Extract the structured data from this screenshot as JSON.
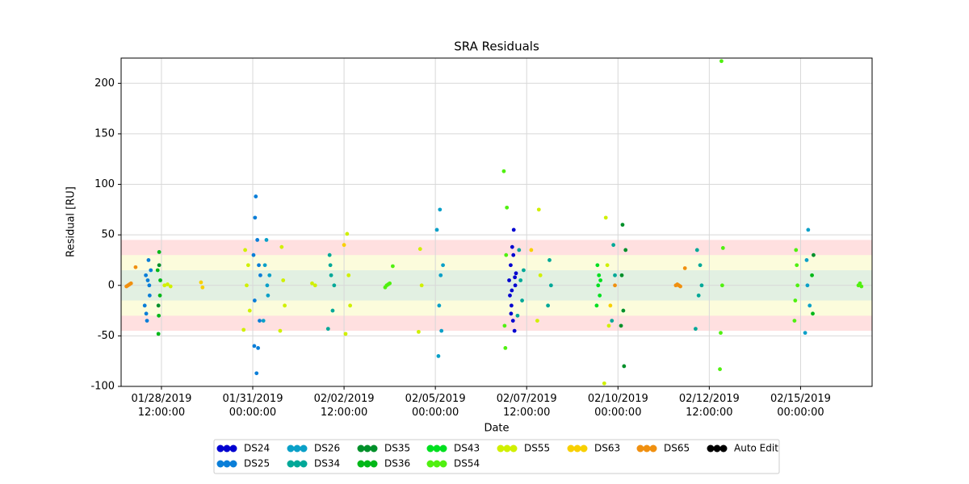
{
  "chart_data": {
    "type": "scatter",
    "title": "SRA Residuals",
    "x_label": "Date",
    "y_label": "Residual [RU]",
    "xlim": [
      "2019-01-27T09:30",
      "2019-02-16T23:00"
    ],
    "ylim": [
      -100,
      225
    ],
    "xticks": [
      {
        "value": "2019-01-28T12:00",
        "label": "01/28/2019\n12:00:00"
      },
      {
        "value": "2019-01-31T00:00",
        "label": "01/31/2019\n00:00:00"
      },
      {
        "value": "2019-02-02T12:00",
        "label": "02/02/2019\n12:00:00"
      },
      {
        "value": "2019-02-05T00:00",
        "label": "02/05/2019\n00:00:00"
      },
      {
        "value": "2019-02-07T12:00",
        "label": "02/07/2019\n12:00:00"
      },
      {
        "value": "2019-02-10T00:00",
        "label": "02/10/2019\n00:00:00"
      },
      {
        "value": "2019-02-12T12:00",
        "label": "02/12/2019\n12:00:00"
      },
      {
        "value": "2019-02-15T00:00",
        "label": "02/15/2019\n00:00:00"
      }
    ],
    "yticks": [
      -100,
      -50,
      0,
      50,
      100,
      150,
      200
    ],
    "grid": true,
    "bands": [
      {
        "min": -45,
        "max": 45,
        "color": "#ffe0e0"
      },
      {
        "min": -30,
        "max": 30,
        "color": "#fcfcdc"
      },
      {
        "min": -15,
        "max": 15,
        "color": "#e2f0e2"
      }
    ],
    "legend_position": "bottom",
    "series": [
      {
        "name": "DS24",
        "color": "#0000d0",
        "x": [
          "2019-02-07T00:30",
          "2019-02-07T01:00",
          "2019-02-07T01:30",
          "2019-02-07T02:00",
          "2019-02-07T02:30",
          "2019-02-07T03:00",
          "2019-02-07T03:30",
          "2019-02-07T04:00",
          "2019-02-07T04:30",
          "2019-02-07T05:00",
          "2019-02-07T02:15",
          "2019-02-07T03:15",
          "2019-02-07T01:45",
          "2019-02-07T04:15"
        ],
        "values": [
          5,
          -10,
          20,
          -20,
          38,
          -35,
          55,
          -45,
          0,
          12,
          -5,
          30,
          -28,
          8
        ]
      },
      {
        "name": "DS25",
        "color": "#0a7ed8",
        "x": [
          "2019-01-28T01:00",
          "2019-01-28T01:45",
          "2019-01-28T02:30",
          "2019-01-28T03:00",
          "2019-01-28T03:30",
          "2019-01-28T04:15",
          "2019-01-28T05:00",
          "2019-01-28T02:00",
          "2019-01-28T04:00",
          "2019-01-31T00:30",
          "2019-01-31T01:00",
          "2019-01-31T01:30",
          "2019-01-31T02:00",
          "2019-01-31T02:30",
          "2019-01-31T03:00",
          "2019-01-31T03:30",
          "2019-01-31T04:00",
          "2019-01-31T04:30",
          "2019-01-31T05:00",
          "2019-01-31T01:15"
        ],
        "values": [
          -20,
          10,
          -35,
          5,
          25,
          -10,
          15,
          -28,
          0,
          30,
          -60,
          67,
          88,
          -87,
          45,
          -62,
          20,
          -35,
          10,
          -15
        ]
      },
      {
        "name": "DS26",
        "color": "#0aa0c8",
        "x": [
          "2019-01-31T07:00",
          "2019-01-31T08:00",
          "2019-01-31T09:00",
          "2019-01-31T10:00",
          "2019-01-31T11:00",
          "2019-01-31T09:30",
          "2019-02-05T01:00",
          "2019-02-05T02:00",
          "2019-02-05T03:00",
          "2019-02-05T04:00",
          "2019-02-05T05:00",
          "2019-02-05T02:30",
          "2019-02-05T03:30",
          "2019-02-15T03:00",
          "2019-02-15T04:00",
          "2019-02-15T05:00",
          "2019-02-15T06:00",
          "2019-02-15T04:30"
        ],
        "values": [
          -35,
          20,
          45,
          -10,
          10,
          0,
          55,
          -70,
          75,
          -45,
          20,
          -20,
          10,
          -47,
          25,
          55,
          -20,
          0
        ]
      },
      {
        "name": "DS34",
        "color": "#00a898",
        "x": [
          "2019-02-02T01:30",
          "2019-02-02T02:30",
          "2019-02-02T03:30",
          "2019-02-02T04:30",
          "2019-02-02T05:30",
          "2019-02-02T03:00",
          "2019-02-07T06:00",
          "2019-02-07T07:00",
          "2019-02-07T08:00",
          "2019-02-07T09:00",
          "2019-02-07T10:00",
          "2019-02-08T02:00",
          "2019-02-08T03:00",
          "2019-02-08T04:00",
          "2019-02-09T20:00",
          "2019-02-09T21:00",
          "2019-02-09T22:00",
          "2019-02-12T03:00",
          "2019-02-12T04:00",
          "2019-02-12T05:00",
          "2019-02-12T06:00",
          "2019-02-12T07:00"
        ],
        "values": [
          -43,
          30,
          10,
          -25,
          0,
          20,
          -30,
          35,
          5,
          -15,
          15,
          -20,
          25,
          0,
          -35,
          40,
          10,
          -43,
          35,
          -10,
          20,
          0
        ]
      },
      {
        "name": "DS35",
        "color": "#00902a",
        "x": [
          "2019-01-28T10:00",
          "2019-01-28T10:30",
          "2019-02-10T02:00",
          "2019-02-10T03:00",
          "2019-02-10T04:00",
          "2019-02-10T05:00",
          "2019-02-10T03:30",
          "2019-02-10T02:30",
          "2019-02-15T08:30"
        ],
        "values": [
          -20,
          20,
          -40,
          60,
          -80,
          35,
          -25,
          10,
          30
        ]
      },
      {
        "name": "DS36",
        "color": "#00b818",
        "x": [
          "2019-01-28T10:00",
          "2019-01-28T10:30",
          "2019-01-28T11:00",
          "2019-01-28T09:30",
          "2019-01-28T10:15",
          "2019-01-28T11:15",
          "2019-02-15T08:00",
          "2019-02-15T07:30"
        ],
        "values": [
          -48,
          33,
          -10,
          15,
          -30,
          5,
          -28,
          10
        ]
      },
      {
        "name": "DS43",
        "color": "#00e020",
        "x": [
          "2019-02-09T10:00",
          "2019-02-09T10:30",
          "2019-02-09T11:00",
          "2019-02-09T11:30",
          "2019-02-09T12:00",
          "2019-02-09T12:30"
        ],
        "values": [
          -20,
          20,
          0,
          10,
          -10,
          5
        ]
      },
      {
        "name": "DS54",
        "color": "#50f010",
        "x": [
          "2019-02-03T15:00",
          "2019-02-03T16:00",
          "2019-02-03T17:00",
          "2019-02-03T18:00",
          "2019-02-03T20:00",
          "2019-02-06T21:00",
          "2019-02-06T22:00",
          "2019-02-06T23:00",
          "2019-02-06T21:30",
          "2019-02-06T22:30",
          "2019-02-12T19:00",
          "2019-02-12T20:00",
          "2019-02-12T21:00",
          "2019-02-12T19:30",
          "2019-02-12T20:30",
          "2019-02-14T20:00",
          "2019-02-14T21:00",
          "2019-02-14T22:00",
          "2019-02-14T20:30",
          "2019-02-14T21:30",
          "2019-02-16T14:00",
          "2019-02-16T15:00",
          "2019-02-16T16:00"
        ],
        "values": [
          -2,
          0,
          1,
          2,
          19,
          113,
          -62,
          77,
          -40,
          30,
          -83,
          222,
          37,
          -47,
          0,
          -35,
          35,
          0,
          -15,
          20,
          0,
          2,
          -1
        ]
      },
      {
        "name": "DS55",
        "color": "#d0f000",
        "x": [
          "2019-01-28T14:00",
          "2019-01-28T16:00",
          "2019-01-28T18:00",
          "2019-01-30T18:00",
          "2019-01-30T19:00",
          "2019-01-30T20:00",
          "2019-01-30T21:00",
          "2019-01-30T22:00",
          "2019-01-31T18:00",
          "2019-01-31T19:00",
          "2019-01-31T20:00",
          "2019-01-31T21:00",
          "2019-02-01T15:00",
          "2019-02-01T17:00",
          "2019-02-02T13:00",
          "2019-02-02T14:00",
          "2019-02-02T15:00",
          "2019-02-02T16:00",
          "2019-02-04T13:00",
          "2019-02-04T14:00",
          "2019-02-04T15:00",
          "2019-02-07T19:00",
          "2019-02-07T20:00",
          "2019-02-07T21:00",
          "2019-02-09T15:00",
          "2019-02-09T16:00",
          "2019-02-09T17:00",
          "2019-02-09T18:00"
        ],
        "values": [
          0,
          1,
          -1,
          -44,
          35,
          0,
          20,
          -25,
          -45,
          38,
          5,
          -20,
          2,
          0,
          -48,
          51,
          10,
          -20,
          -46,
          36,
          0,
          -35,
          75,
          10,
          -97,
          67,
          20,
          -40
        ]
      },
      {
        "name": "DS63",
        "color": "#f8d000",
        "x": [
          "2019-01-29T14:00",
          "2019-01-29T15:00",
          "2019-02-02T12:00",
          "2019-02-07T15:00",
          "2019-02-09T19:00"
        ],
        "values": [
          3,
          -2,
          40,
          35,
          -20
        ]
      },
      {
        "name": "DS65",
        "color": "#f09010",
        "x": [
          "2019-01-27T13:00",
          "2019-01-27T14:00",
          "2019-01-27T15:00",
          "2019-01-27T16:00",
          "2019-01-27T19:00",
          "2019-02-09T22:00",
          "2019-02-11T14:00",
          "2019-02-11T15:00",
          "2019-02-11T16:00",
          "2019-02-11T17:00",
          "2019-02-11T20:00"
        ],
        "values": [
          -1,
          0,
          1,
          2,
          18,
          0,
          0,
          1,
          0,
          -1,
          17
        ]
      },
      {
        "name": "Auto Edit",
        "color": "#000000",
        "x": [],
        "values": []
      }
    ]
  }
}
